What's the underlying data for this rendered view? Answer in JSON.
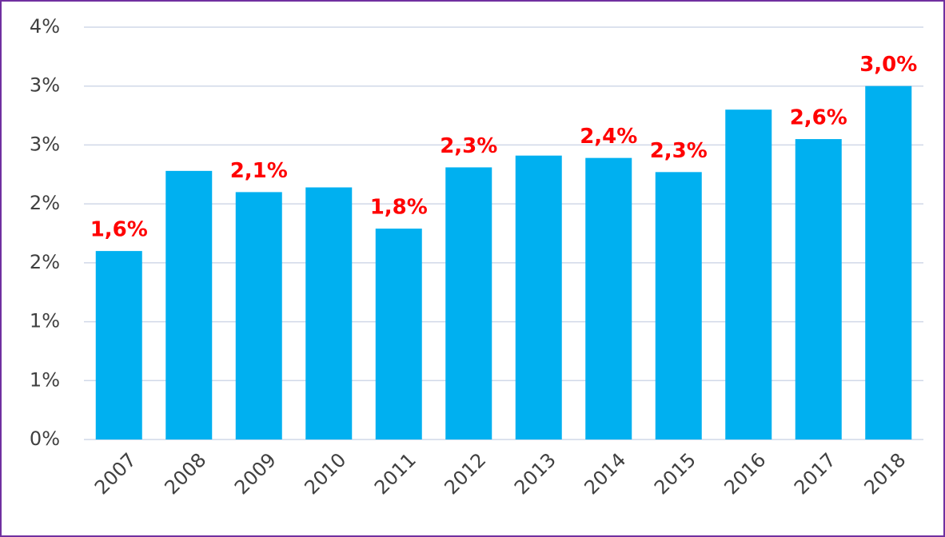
{
  "chart_data": {
    "type": "bar",
    "categories": [
      "2007",
      "2008",
      "2009",
      "2010",
      "2011",
      "2012",
      "2013",
      "2014",
      "2015",
      "2016",
      "2017",
      "2018"
    ],
    "values": [
      1.6,
      2.28,
      2.1,
      2.14,
      1.79,
      2.31,
      2.41,
      2.39,
      2.27,
      2.8,
      2.55,
      3.0
    ],
    "value_labels": [
      "1,6%",
      null,
      "2,1%",
      null,
      "1,8%",
      "2,3%",
      null,
      "2,4%",
      "2,3%",
      null,
      "2,6%",
      "3,0%"
    ],
    "color": "#00b0f0",
    "label_color": "#ff0000",
    "ylim": [
      0,
      3.5
    ],
    "yticks": [
      {
        "value": 0,
        "label": "0%"
      },
      {
        "value": 0.5,
        "label": "1%"
      },
      {
        "value": 1,
        "label": "1%"
      },
      {
        "value": 1.5,
        "label": "2%"
      },
      {
        "value": 2,
        "label": "2%"
      },
      {
        "value": 2.5,
        "label": "3%"
      },
      {
        "value": 3,
        "label": "3%"
      },
      {
        "value": 3.5,
        "label": "4%"
      }
    ],
    "grid": true
  }
}
